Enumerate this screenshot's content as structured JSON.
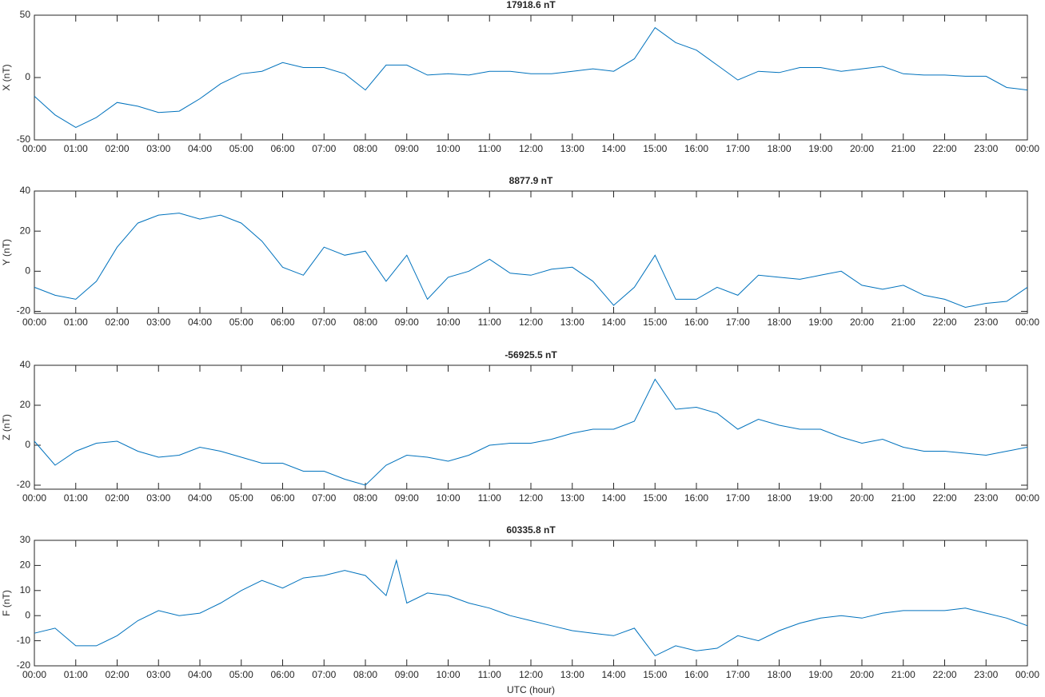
{
  "chart_data": [
    {
      "type": "line",
      "title": "17918.6 nT",
      "ylabel": "X (nT)",
      "color": "#0072bd",
      "x": [
        0,
        0.5,
        1,
        1.5,
        2,
        2.5,
        3,
        3.5,
        4,
        4.5,
        5,
        5.5,
        6,
        6.5,
        7,
        7.5,
        8,
        8.5,
        9,
        9.5,
        10,
        10.5,
        11,
        11.5,
        12,
        12.5,
        13,
        13.5,
        14,
        14.5,
        15,
        15.5,
        16,
        16.5,
        17,
        17.5,
        18,
        18.5,
        19,
        19.5,
        20,
        20.5,
        21,
        21.5,
        22,
        22.5,
        23,
        23.5,
        24
      ],
      "values": [
        -15,
        -30,
        -40,
        -32,
        -20,
        -23,
        -28,
        -27,
        -17,
        -5,
        3,
        5,
        12,
        8,
        8,
        3,
        -10,
        10,
        10,
        2,
        3,
        2,
        5,
        5,
        3,
        3,
        5,
        7,
        5,
        15,
        40,
        28,
        22,
        10,
        -2,
        5,
        4,
        8,
        8,
        5,
        7,
        9,
        3,
        2,
        2,
        1,
        1,
        -8,
        -10
      ],
      "xlim": [
        0,
        24
      ],
      "ylim": [
        -50,
        50
      ],
      "yticks": [
        -50,
        0,
        50
      ],
      "xticks": [
        {
          "value": 0,
          "label": "00:00"
        },
        {
          "value": 1,
          "label": "01:00"
        },
        {
          "value": 2,
          "label": "02:00"
        },
        {
          "value": 3,
          "label": "03:00"
        },
        {
          "value": 4,
          "label": "04:00"
        },
        {
          "value": 5,
          "label": "05:00"
        },
        {
          "value": 6,
          "label": "06:00"
        },
        {
          "value": 7,
          "label": "07:00"
        },
        {
          "value": 8,
          "label": "08:00"
        },
        {
          "value": 9,
          "label": "09:00"
        },
        {
          "value": 10,
          "label": "10:00"
        },
        {
          "value": 11,
          "label": "11:00"
        },
        {
          "value": 12,
          "label": "12:00"
        },
        {
          "value": 13,
          "label": "13:00"
        },
        {
          "value": 14,
          "label": "14:00"
        },
        {
          "value": 15,
          "label": "15:00"
        },
        {
          "value": 16,
          "label": "16:00"
        },
        {
          "value": 17,
          "label": "17:00"
        },
        {
          "value": 18,
          "label": "18:00"
        },
        {
          "value": 19,
          "label": "19:00"
        },
        {
          "value": 20,
          "label": "20:00"
        },
        {
          "value": 21,
          "label": "21:00"
        },
        {
          "value": 22,
          "label": "22:00"
        },
        {
          "value": 23,
          "label": "23:00"
        },
        {
          "value": 24,
          "label": "00:00"
        }
      ]
    },
    {
      "type": "line",
      "title": "8877.9 nT",
      "ylabel": "Y (nT)",
      "color": "#0072bd",
      "x": [
        0,
        0.5,
        1,
        1.5,
        2,
        2.5,
        3,
        3.5,
        4,
        4.5,
        5,
        5.5,
        6,
        6.5,
        7,
        7.5,
        8,
        8.5,
        9,
        9.5,
        10,
        10.5,
        11,
        11.5,
        12,
        12.5,
        13,
        13.5,
        14,
        14.5,
        15,
        15.5,
        16,
        16.5,
        17,
        17.5,
        18,
        18.5,
        19,
        19.5,
        20,
        20.5,
        21,
        21.5,
        22,
        22.5,
        23,
        23.5,
        24
      ],
      "values": [
        -8,
        -12,
        -14,
        -5,
        12,
        24,
        28,
        29,
        26,
        28,
        24,
        15,
        2,
        -2,
        12,
        8,
        10,
        -5,
        8,
        -14,
        -3,
        0,
        6,
        -1,
        -2,
        1,
        2,
        -5,
        -17,
        -8,
        8,
        -14,
        -14,
        -8,
        -12,
        -2,
        -3,
        -4,
        -2,
        0,
        -7,
        -9,
        -7,
        -12,
        -14,
        -18,
        -16,
        -15,
        -8
      ],
      "xlim": [
        0,
        24
      ],
      "ylim": [
        -21,
        40
      ],
      "yticks": [
        -20,
        0,
        20,
        40
      ],
      "xticks": [
        {
          "value": 0,
          "label": "00:00"
        },
        {
          "value": 1,
          "label": "01:00"
        },
        {
          "value": 2,
          "label": "02:00"
        },
        {
          "value": 3,
          "label": "03:00"
        },
        {
          "value": 4,
          "label": "04:00"
        },
        {
          "value": 5,
          "label": "05:00"
        },
        {
          "value": 6,
          "label": "06:00"
        },
        {
          "value": 7,
          "label": "07:00"
        },
        {
          "value": 8,
          "label": "08:00"
        },
        {
          "value": 9,
          "label": "09:00"
        },
        {
          "value": 10,
          "label": "10:00"
        },
        {
          "value": 11,
          "label": "11:00"
        },
        {
          "value": 12,
          "label": "12:00"
        },
        {
          "value": 13,
          "label": "13:00"
        },
        {
          "value": 14,
          "label": "14:00"
        },
        {
          "value": 15,
          "label": "15:00"
        },
        {
          "value": 16,
          "label": "16:00"
        },
        {
          "value": 17,
          "label": "17:00"
        },
        {
          "value": 18,
          "label": "18:00"
        },
        {
          "value": 19,
          "label": "19:00"
        },
        {
          "value": 20,
          "label": "20:00"
        },
        {
          "value": 21,
          "label": "21:00"
        },
        {
          "value": 22,
          "label": "22:00"
        },
        {
          "value": 23,
          "label": "23:00"
        },
        {
          "value": 24,
          "label": "00:00"
        }
      ]
    },
    {
      "type": "line",
      "title": "-56925.5 nT",
      "ylabel": "Z (nT)",
      "color": "#0072bd",
      "x": [
        0,
        0.5,
        1,
        1.5,
        2,
        2.5,
        3,
        3.5,
        4,
        4.5,
        5,
        5.5,
        6,
        6.5,
        7,
        7.5,
        8,
        8.5,
        9,
        9.5,
        10,
        10.5,
        11,
        11.5,
        12,
        12.5,
        13,
        13.5,
        14,
        14.5,
        15,
        15.5,
        16,
        16.5,
        17,
        17.5,
        18,
        18.5,
        19,
        19.5,
        20,
        20.5,
        21,
        21.5,
        22,
        22.5,
        23,
        23.5,
        24
      ],
      "values": [
        2,
        -10,
        -3,
        1,
        2,
        -3,
        -6,
        -5,
        -1,
        -3,
        -6,
        -9,
        -9,
        -13,
        -13,
        -17,
        -20,
        -10,
        -5,
        -6,
        -8,
        -5,
        0,
        1,
        1,
        3,
        6,
        8,
        8,
        12,
        33,
        18,
        19,
        16,
        8,
        13,
        10,
        8,
        8,
        4,
        1,
        3,
        -1,
        -3,
        -3,
        -4,
        -5,
        -3,
        -1
      ],
      "xlim": [
        0,
        24
      ],
      "ylim": [
        -22,
        40
      ],
      "yticks": [
        -20,
        0,
        20,
        40
      ],
      "xticks": [
        {
          "value": 0,
          "label": "00:00"
        },
        {
          "value": 1,
          "label": "01:00"
        },
        {
          "value": 2,
          "label": "02:00"
        },
        {
          "value": 3,
          "label": "03:00"
        },
        {
          "value": 4,
          "label": "04:00"
        },
        {
          "value": 5,
          "label": "05:00"
        },
        {
          "value": 6,
          "label": "06:00"
        },
        {
          "value": 7,
          "label": "07:00"
        },
        {
          "value": 8,
          "label": "08:00"
        },
        {
          "value": 9,
          "label": "09:00"
        },
        {
          "value": 10,
          "label": "10:00"
        },
        {
          "value": 11,
          "label": "11:00"
        },
        {
          "value": 12,
          "label": "12:00"
        },
        {
          "value": 13,
          "label": "13:00"
        },
        {
          "value": 14,
          "label": "14:00"
        },
        {
          "value": 15,
          "label": "15:00"
        },
        {
          "value": 16,
          "label": "16:00"
        },
        {
          "value": 17,
          "label": "17:00"
        },
        {
          "value": 18,
          "label": "18:00"
        },
        {
          "value": 19,
          "label": "19:00"
        },
        {
          "value": 20,
          "label": "20:00"
        },
        {
          "value": 21,
          "label": "21:00"
        },
        {
          "value": 22,
          "label": "22:00"
        },
        {
          "value": 23,
          "label": "23:00"
        },
        {
          "value": 24,
          "label": "00:00"
        }
      ]
    },
    {
      "type": "line",
      "title": "60335.8 nT",
      "ylabel": "F (nT)",
      "xlabel": "UTC (hour)",
      "color": "#0072bd",
      "x": [
        0,
        0.5,
        1,
        1.5,
        2,
        2.5,
        3,
        3.5,
        4,
        4.5,
        5,
        5.5,
        6,
        6.5,
        7,
        7.5,
        8,
        8.5,
        8.75,
        9,
        9.5,
        10,
        10.5,
        11,
        11.5,
        12,
        12.5,
        13,
        13.5,
        14,
        14.5,
        15,
        15.5,
        16,
        16.5,
        17,
        17.5,
        18,
        18.5,
        19,
        19.5,
        20,
        20.5,
        21,
        21.5,
        22,
        22.5,
        23,
        23.5,
        24
      ],
      "values": [
        -7,
        -5,
        -12,
        -12,
        -8,
        -2,
        2,
        0,
        1,
        5,
        10,
        14,
        11,
        15,
        16,
        18,
        16,
        8,
        22,
        5,
        9,
        8,
        5,
        3,
        0,
        -2,
        -4,
        -6,
        -7,
        -8,
        -5,
        -16,
        -12,
        -14,
        -13,
        -8,
        -10,
        -6,
        -3,
        -1,
        0,
        -1,
        1,
        2,
        2,
        2,
        3,
        1,
        -1,
        -4
      ],
      "xlim": [
        0,
        24
      ],
      "ylim": [
        -20,
        30
      ],
      "yticks": [
        -20,
        -10,
        0,
        10,
        20,
        30
      ],
      "xticks": [
        {
          "value": 0,
          "label": "00:00"
        },
        {
          "value": 1,
          "label": "01:00"
        },
        {
          "value": 2,
          "label": "02:00"
        },
        {
          "value": 3,
          "label": "03:00"
        },
        {
          "value": 4,
          "label": "04:00"
        },
        {
          "value": 5,
          "label": "05:00"
        },
        {
          "value": 6,
          "label": "06:00"
        },
        {
          "value": 7,
          "label": "07:00"
        },
        {
          "value": 8,
          "label": "08:00"
        },
        {
          "value": 9,
          "label": "09:00"
        },
        {
          "value": 10,
          "label": "10:00"
        },
        {
          "value": 11,
          "label": "11:00"
        },
        {
          "value": 12,
          "label": "12:00"
        },
        {
          "value": 13,
          "label": "13:00"
        },
        {
          "value": 14,
          "label": "14:00"
        },
        {
          "value": 15,
          "label": "15:00"
        },
        {
          "value": 16,
          "label": "16:00"
        },
        {
          "value": 17,
          "label": "17:00"
        },
        {
          "value": 18,
          "label": "18:00"
        },
        {
          "value": 19,
          "label": "19:00"
        },
        {
          "value": 20,
          "label": "20:00"
        },
        {
          "value": 21,
          "label": "21:00"
        },
        {
          "value": 22,
          "label": "22:00"
        },
        {
          "value": 23,
          "label": "23:00"
        },
        {
          "value": 24,
          "label": "00:00"
        }
      ]
    }
  ]
}
